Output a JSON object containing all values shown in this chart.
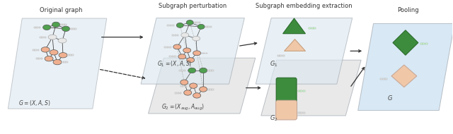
{
  "bg_color": "#ffffff",
  "panel_colors": {
    "original": "#dce8f0",
    "perturb1": "#dce8f0",
    "perturb2": "#e0e0e0",
    "embed1": "#dce8f0",
    "embed2": "#e0e0e0",
    "pool": "#c8dff0"
  },
  "labels": {
    "original_graph": "Original graph",
    "subgraph_perturbation": "Subgraph perturbation",
    "subgraph_embedding": "Subgraph embedding extraction",
    "pooling": "Pooling",
    "G_orig": "$G = (X,A,S)$",
    "G1": "$G_1 = (X,A,S)$",
    "G2": "$G_2 = (X_{aug},A_{aug})$",
    "G1_label": "$G_1$",
    "G2_label": "$G_2$",
    "G_final": "$G$"
  },
  "node_green": "#4fa04f",
  "node_peach": "#f0b090",
  "node_white": "#e8e8e8",
  "shape_green": "#3d8c3d",
  "shape_peach": "#f0c8a8",
  "font_size": 6.0,
  "label_font_size": 5.5
}
